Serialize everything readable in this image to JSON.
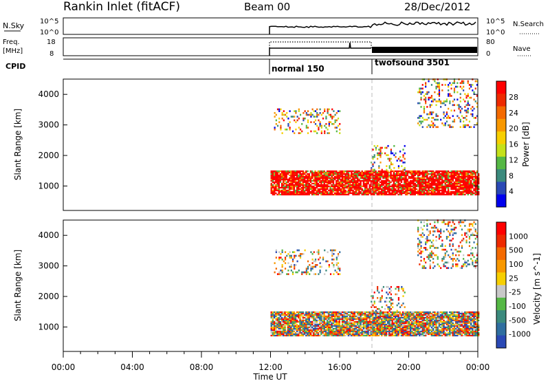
{
  "header": {
    "title": "Rankin Inlet (fitACF)",
    "beam": "Beam 00",
    "date": "28/Dec/2012"
  },
  "panels": {
    "nsky": {
      "left_label": "N.Sky",
      "left_ticks": [
        "10^5",
        "10^0"
      ],
      "right_ticks": [
        "10^5",
        "10^0"
      ],
      "right_label": "N.Search"
    },
    "freq": {
      "left_label_1": "Freq.",
      "left_label_2": "[MHz]",
      "left_ticks": [
        "18",
        "8"
      ],
      "right_ticks": [
        "80",
        "0"
      ],
      "right_label": "Nave"
    },
    "cpid": {
      "label": "CPID",
      "modes": [
        {
          "name": "normal 150",
          "start_hour": 12.0
        },
        {
          "name": "twofsound 3501",
          "start_hour": 18.0
        }
      ]
    }
  },
  "chart_data": [
    {
      "type": "heatmap",
      "ylabel": "Slant Range [km]",
      "y_ticks": [
        1000,
        2000,
        3000,
        4000
      ],
      "ylim": [
        200,
        4500
      ],
      "colorbar": {
        "label": "Power [dB]",
        "ticks": [
          "28",
          "24",
          "20",
          "16",
          "12",
          "8",
          "4"
        ],
        "range": [
          0,
          32
        ],
        "colors": [
          "#0000ee",
          "#2a49b5",
          "#3b8a7d",
          "#55b845",
          "#c5e11a",
          "#f7cf00",
          "#f89800",
          "#f46a00",
          "#ee2a00",
          "#ff0000"
        ]
      },
      "data_x_range_hours": [
        12,
        24
      ],
      "echo_bands_km": [
        {
          "from": 700,
          "to": 1500,
          "hours": [
            12,
            24
          ]
        },
        {
          "from": 2700,
          "to": 3500,
          "hours": [
            12.2,
            16
          ]
        },
        {
          "from": 2900,
          "to": 4500,
          "hours": [
            20.5,
            24
          ]
        },
        {
          "from": 1500,
          "to": 2300,
          "hours": [
            17.8,
            19.8
          ]
        }
      ]
    },
    {
      "type": "heatmap",
      "ylabel": "Slant Range [km]",
      "y_ticks": [
        1000,
        2000,
        3000,
        4000
      ],
      "ylim": [
        200,
        4500
      ],
      "colorbar": {
        "label": "Velocity [m s^-1]",
        "ticks": [
          "1000",
          "500",
          "100",
          "25",
          "-25",
          "-100",
          "-500",
          "-1000"
        ],
        "range": [
          -1000,
          1000
        ],
        "colors": [
          "#2a49b5",
          "#2f6ea0",
          "#3b8a7d",
          "#55b845",
          "#c8c8c8",
          "#f7cf00",
          "#f89800",
          "#f46a00",
          "#ee2a00",
          "#ff0000"
        ]
      },
      "data_x_range_hours": [
        12,
        24
      ],
      "echo_bands_km": [
        {
          "from": 700,
          "to": 1500,
          "hours": [
            12,
            24
          ]
        },
        {
          "from": 2700,
          "to": 3500,
          "hours": [
            12.2,
            16
          ]
        },
        {
          "from": 2900,
          "to": 4500,
          "hours": [
            20.5,
            24
          ]
        },
        {
          "from": 1500,
          "to": 2300,
          "hours": [
            17.8,
            19.8
          ]
        }
      ]
    }
  ],
  "x_axis": {
    "label": "Time UT",
    "ticks": [
      "00:00",
      "04:00",
      "08:00",
      "12:00",
      "16:00",
      "20:00",
      "00:00"
    ],
    "range_hours": [
      0,
      24
    ],
    "mode_change_hour": 18.0
  }
}
